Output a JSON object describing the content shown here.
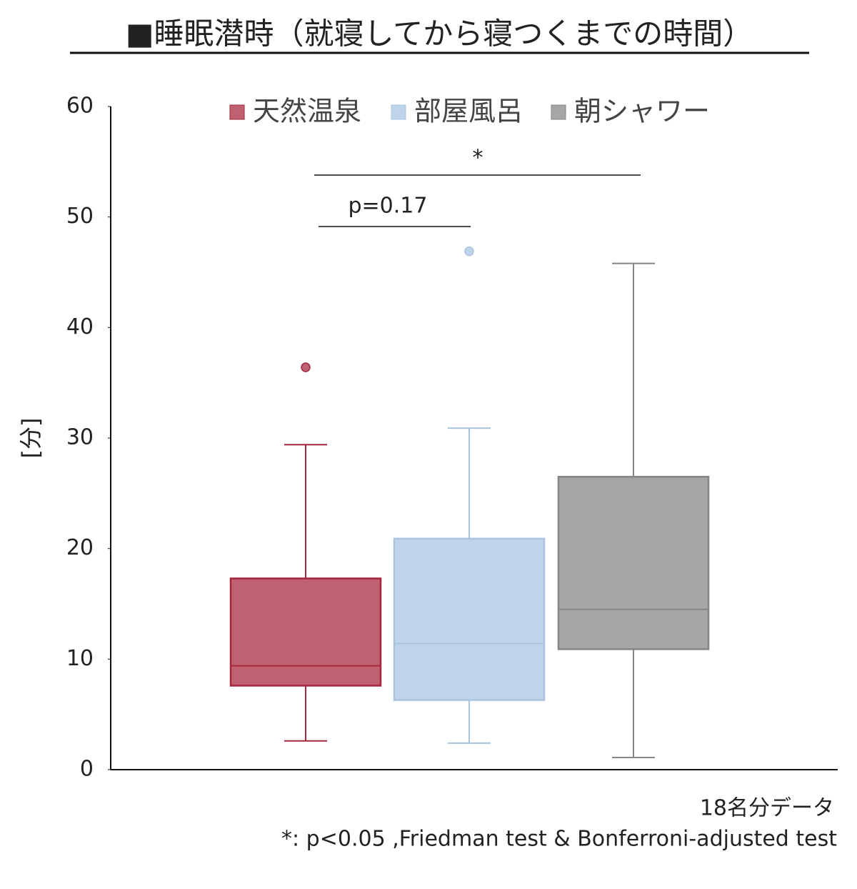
{
  "chart_data": {
    "type": "box",
    "title": "■睡眠潜時（就寝してから寝つくまでの時間）",
    "y_label": "[分]",
    "ylim": [
      0,
      60
    ],
    "yticks": [
      0,
      10,
      20,
      30,
      40,
      50,
      60
    ],
    "legend": "top",
    "series": [
      {
        "name": "天然温泉",
        "color": "#bf6170",
        "edge": "#a3283d",
        "whisker_low": 2.6,
        "q1": 7.6,
        "median": 9.4,
        "q3": 17.3,
        "whisker_high": 29.4,
        "outliers": [
          36.4
        ]
      },
      {
        "name": "部屋風呂",
        "color": "#bed4ea",
        "edge": "#a9c3dd",
        "whisker_low": 2.4,
        "q1": 6.3,
        "median": 11.4,
        "q3": 20.9,
        "whisker_high": 30.9,
        "outliers": [
          46.9
        ]
      },
      {
        "name": "朝シャワー",
        "color": "#a6a6a6",
        "edge": "#858585",
        "whisker_low": 1.1,
        "q1": 10.9,
        "median": 14.5,
        "q3": 26.5,
        "whisker_high": 45.8,
        "outliers": []
      }
    ],
    "annotations": [
      "*",
      "p=0.17"
    ],
    "notes": [
      "18名分データ",
      "*: p<0.05 ,Friedman test & Bonferroni-adjusted test"
    ]
  }
}
